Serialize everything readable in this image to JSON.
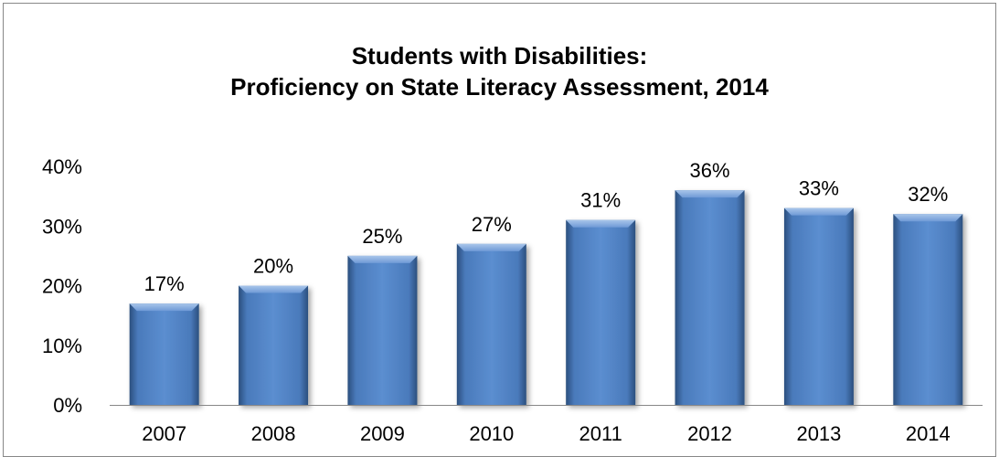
{
  "chart_data": {
    "type": "bar",
    "title_line1": "Students with Disabilities:",
    "title_line2": "Proficiency on State Literacy Assessment, 2014",
    "categories": [
      "2007",
      "2008",
      "2009",
      "2010",
      "2011",
      "2012",
      "2013",
      "2014"
    ],
    "values": [
      17,
      20,
      25,
      27,
      31,
      36,
      33,
      32
    ],
    "data_labels": [
      "17%",
      "20%",
      "25%",
      "27%",
      "31%",
      "36%",
      "33%",
      "32%"
    ],
    "y_ticks": [
      "0%",
      "10%",
      "20%",
      "30%",
      "40%"
    ],
    "ylim": [
      0,
      40
    ],
    "xlabel": "",
    "ylabel": "",
    "grid": false,
    "legend": "none",
    "bar_color": "#4F81BD"
  }
}
